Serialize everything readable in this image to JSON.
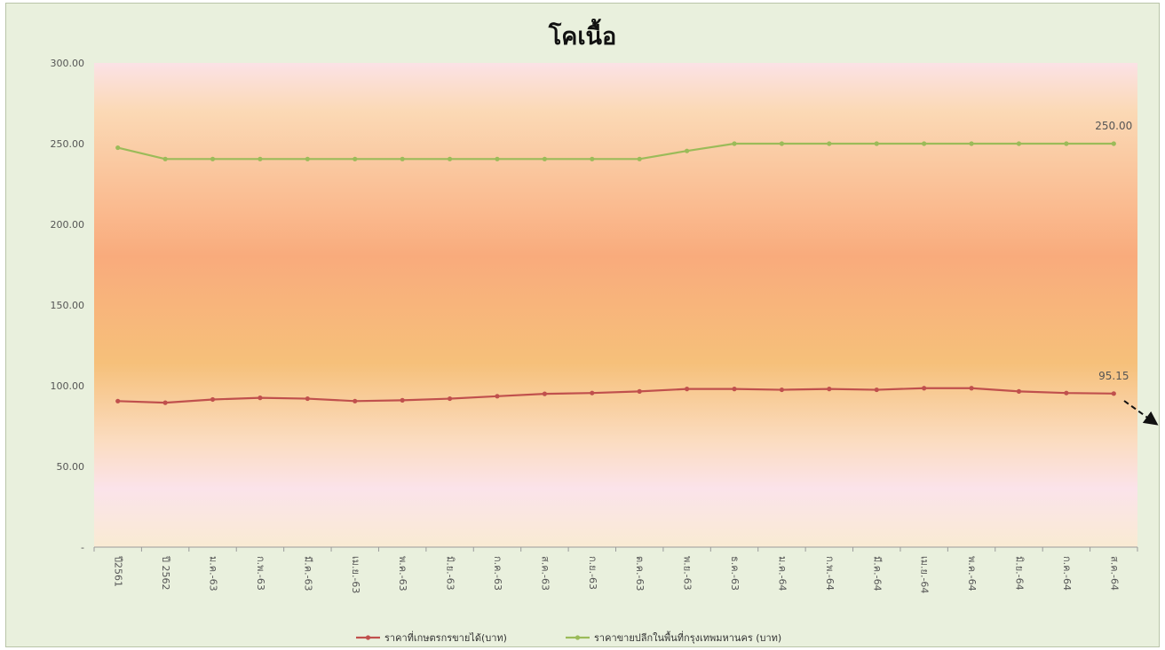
{
  "chart_data": {
    "type": "line",
    "title": "โคเนื้อ",
    "categories": [
      "ปี2561",
      "ปี 2562",
      "ม.ค.-63",
      "ก.พ.-63",
      "มี.ค.-63",
      "เม.ย.-63",
      "พ.ค.-63",
      "มิ.ย.-63",
      "ก.ค.-63",
      "ส.ค.-63",
      "ก.ย.-63",
      "ต.ค.-63",
      "พ.ย.-63",
      "ธ.ค.-63",
      "ม.ค.-64",
      "ก.พ.-64",
      "มี.ค.-64",
      "เม.ย.-64",
      "พ.ค.-64",
      "มิ.ย.-64",
      "ก.ค.-64",
      "ส.ค.-64"
    ],
    "ylim": [
      0,
      300
    ],
    "yticks": [
      0,
      50,
      100,
      150,
      200,
      250,
      300
    ],
    "ytick_labels": [
      "-",
      "50.00",
      "100.00",
      "150.00",
      "200.00",
      "250.00",
      "300.00"
    ],
    "series": [
      {
        "name": "ราคาที่เกษตรกรขายได้(บาท)",
        "color": "#c0504d",
        "values": [
          90.5,
          89.5,
          91.5,
          92.5,
          92.0,
          90.5,
          91.0,
          92.0,
          93.5,
          95.0,
          95.5,
          96.5,
          98.0,
          98.0,
          97.5,
          98.0,
          97.5,
          98.5,
          98.5,
          96.5,
          95.5,
          95.15
        ],
        "end_label": "95.15"
      },
      {
        "name": "ราคาขายปลีกในพื้นที่กรุงเทพมหานคร (บาท)",
        "color": "#9bbb59",
        "values": [
          247.5,
          240.5,
          240.5,
          240.5,
          240.5,
          240.5,
          240.5,
          240.5,
          240.5,
          240.5,
          240.5,
          240.5,
          245.5,
          250,
          250,
          250,
          250,
          250,
          250,
          250,
          250,
          250
        ],
        "end_label": "250.00"
      }
    ],
    "grid": false,
    "legend": "bottom"
  }
}
